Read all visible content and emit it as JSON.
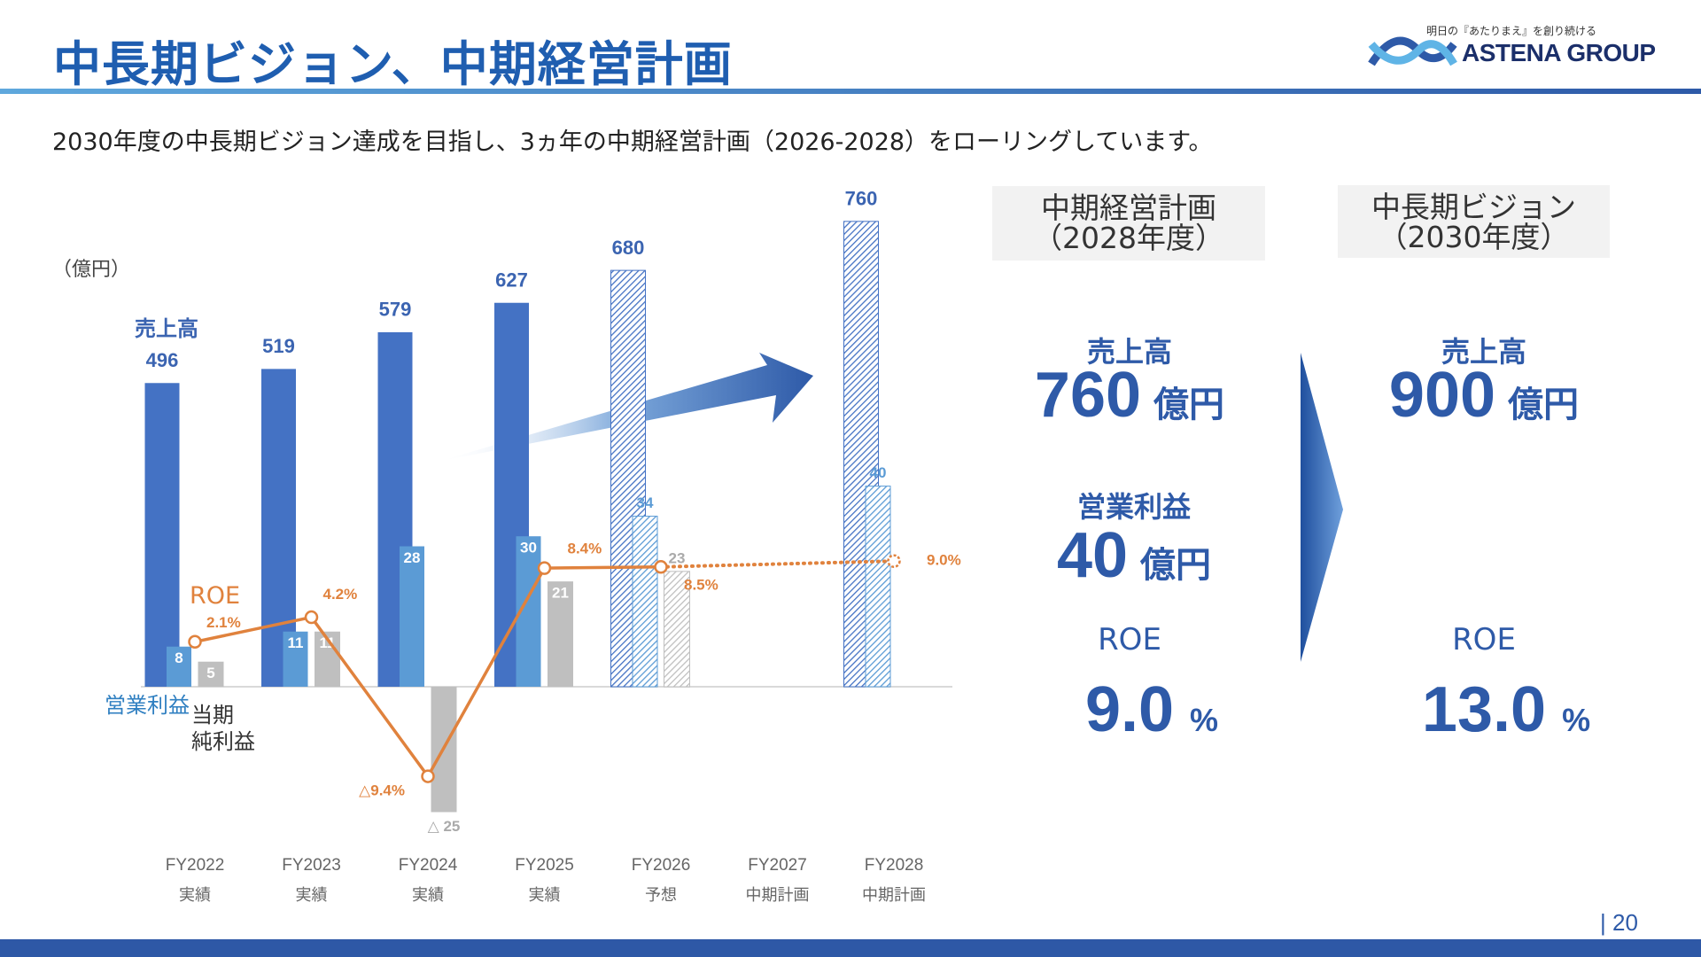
{
  "header": {
    "title": "中長期ビジョン、中期経営計画",
    "tagline": "明日の『あたりまえ』を創り続ける",
    "brand": "ASTENA GROUP"
  },
  "subtitle": "2030年度の中長期ビジョン達成を目指し、3ヵ年の中期経営計画（2026-2028）をローリングしています。",
  "page_number": "| 20",
  "chart_data": {
    "type": "bar",
    "unit": "（億円）",
    "categories": [
      "FY2022",
      "FY2023",
      "FY2024",
      "FY2025",
      "FY2026",
      "FY2027",
      "FY2028"
    ],
    "category_notes": [
      "実績",
      "実績",
      "実績",
      "実績",
      "予想",
      "中期計画",
      "中期計画"
    ],
    "series": [
      {
        "name": "売上高",
        "color": "#4472c4",
        "label_color": "#3b64b1",
        "values": [
          496,
          519,
          579,
          627,
          680,
          null,
          760
        ],
        "patterns": [
          "solid",
          "solid",
          "solid",
          "solid",
          "hatch",
          null,
          "hatch"
        ]
      },
      {
        "name": "営業利益",
        "color": "#5b9bd5",
        "label_color": "#2f7fc1",
        "values": [
          8,
          11,
          28,
          30,
          34,
          null,
          40
        ],
        "patterns": [
          "solid",
          "solid",
          "solid",
          "solid",
          "hatch",
          null,
          "hatch"
        ]
      },
      {
        "name": "当期\n純利益",
        "color": "#bfbfbf",
        "label_color": "#333333",
        "values": [
          5,
          11,
          -25,
          21,
          23,
          null,
          null
        ],
        "value_labels": [
          "5",
          "11",
          "△ 25",
          "21",
          "23",
          null,
          null
        ],
        "patterns": [
          "solid",
          "solid",
          "solid",
          "solid",
          "hatch",
          null,
          null
        ]
      },
      {
        "name": "ROE",
        "type": "line",
        "color": "#e0823d",
        "values": [
          2.1,
          4.2,
          -9.4,
          8.4,
          8.5,
          null,
          9.0
        ],
        "value_labels": [
          "2.1%",
          "4.2%",
          "△9.4%",
          "8.4%",
          "8.5%",
          null,
          "9.0%"
        ],
        "segment_styles": [
          "solid",
          "solid",
          "solid",
          "solid",
          "dotted"
        ]
      }
    ]
  },
  "panels": [
    {
      "header": "中期経営計画\n（2028年度）",
      "items": [
        {
          "label": "売上高",
          "value": "760",
          "unit": "億円"
        },
        {
          "label": "営業利益",
          "value": "40",
          "unit": "億円"
        },
        {
          "label": "ROE",
          "value": "9.0",
          "unit": "%"
        }
      ]
    },
    {
      "header": "中長期ビジョン\n（2030年度）",
      "items": [
        {
          "label": "売上高",
          "value": "900",
          "unit": "億円"
        },
        {
          "label": "ROE",
          "value": "13.0",
          "unit": "%"
        }
      ]
    }
  ]
}
